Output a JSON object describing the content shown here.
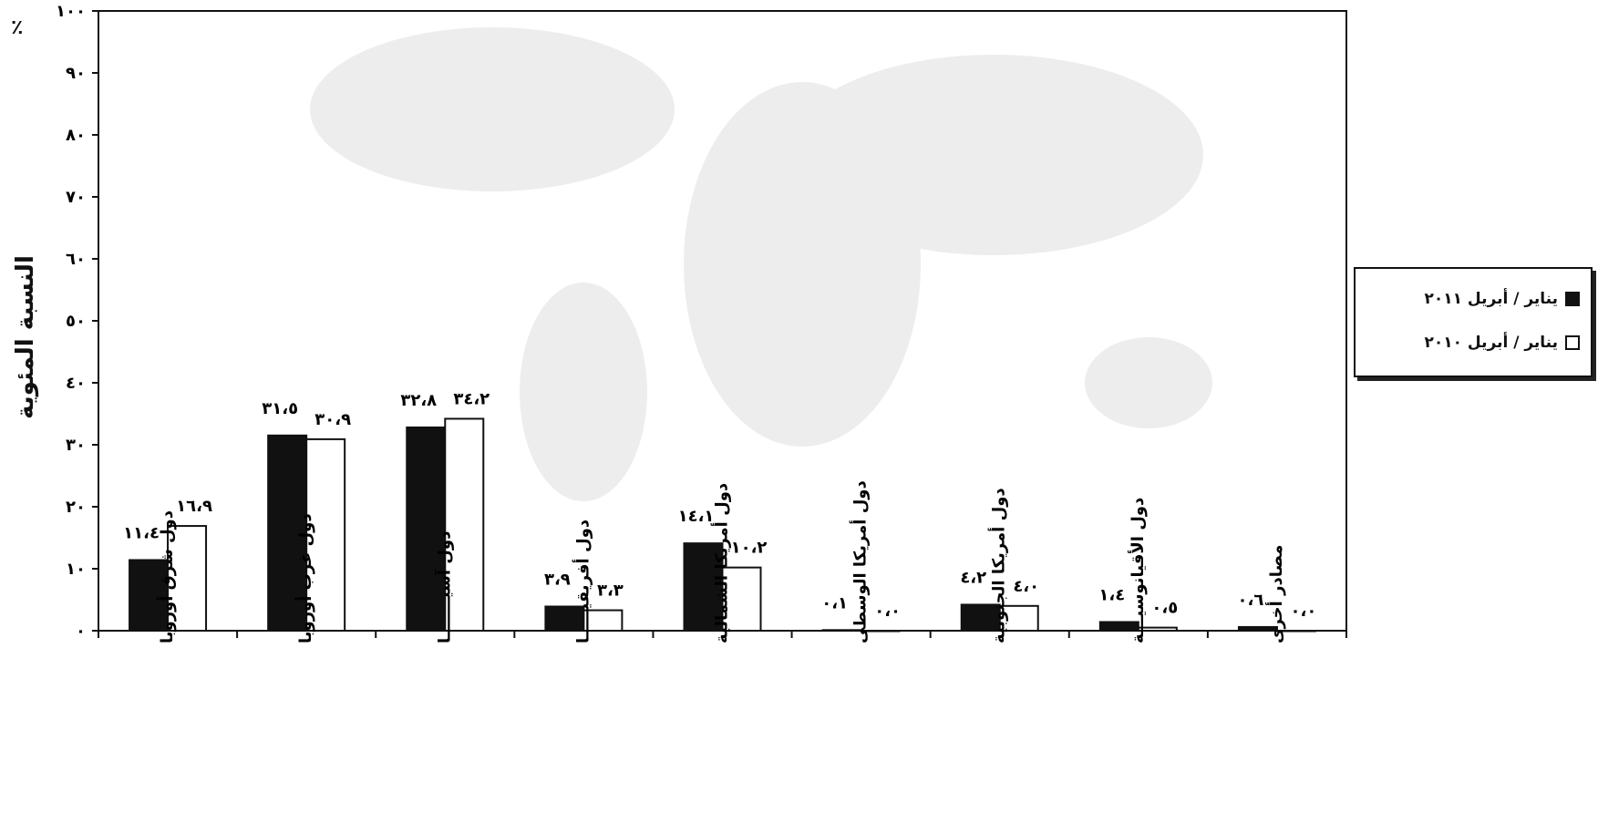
{
  "chart_data": {
    "type": "bar",
    "ylabel": "النسبة المئوية",
    "unit": "٪",
    "ylim": [
      0,
      100
    ],
    "yticks": [
      "٠",
      "١٠",
      "٢٠",
      "٣٠",
      "٤٠",
      "٥٠",
      "٦٠",
      "٧٠",
      "٨٠",
      "٩٠",
      "١٠٠"
    ],
    "categories": [
      "دول شرق أوروبا",
      "دول غرب أوروبا",
      "دول آسيـــــــا",
      "دول أفريقيـــــا",
      "دول أمريكا الشمالية",
      "دول أمريكا الوسطى",
      "دول أمريكا الجنوبية",
      "دول الأقيانوسيـــة",
      "مصادر أخرى"
    ],
    "series": [
      {
        "name": "يناير / أبريل ٢٠١١",
        "color": "#111111",
        "values": [
          11.4,
          31.5,
          32.8,
          3.9,
          14.1,
          0.1,
          4.2,
          1.4,
          0.6
        ],
        "labels": [
          "١١،٤",
          "٣١،٥",
          "٣٢،٨",
          "٣،٩",
          "١٤،١",
          "٠،١",
          "٤،٢",
          "١،٤",
          "٠،٦"
        ]
      },
      {
        "name": "يناير / أبريل ٢٠١٠",
        "color": "#ffffff",
        "values": [
          16.9,
          30.9,
          34.2,
          3.3,
          10.2,
          0.0,
          4.0,
          0.5,
          0.0
        ],
        "labels": [
          "١٦،٩",
          "٣٠،٩",
          "٣٤،٢",
          "٣،٣",
          "١٠،٢",
          "٠،٠",
          "٤،٠",
          "٠،٥",
          "٠،٠"
        ]
      }
    ],
    "grid": false,
    "legend_position": "right"
  }
}
